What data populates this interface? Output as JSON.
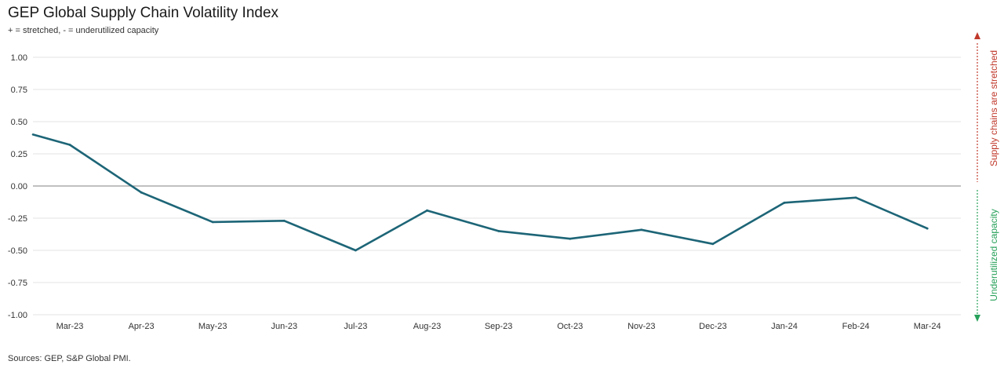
{
  "chart_data": {
    "type": "line",
    "title": "GEP Global Supply Chain Volatility Index",
    "subtitle": "+ = stretched, - = underutilized capacity",
    "xlabel": "",
    "ylabel": "",
    "ylim": [
      -1.0,
      1.0
    ],
    "yticks": [
      "1.00",
      "0.75",
      "0.50",
      "0.25",
      "0.00",
      "-0.25",
      "-0.50",
      "-0.75",
      "-1.00"
    ],
    "ytick_values": [
      1.0,
      0.75,
      0.5,
      0.25,
      0.0,
      -0.25,
      -0.5,
      -0.75,
      -1.0
    ],
    "grid": true,
    "categories": [
      "Mar-23",
      "Apr-23",
      "May-23",
      "Jun-23",
      "Jul-23",
      "Aug-23",
      "Sep-23",
      "Oct-23",
      "Nov-23",
      "Dec-23",
      "Jan-24",
      "Feb-24",
      "Mar-24"
    ],
    "series": [
      {
        "values": [
          0.32,
          -0.05,
          -0.28,
          -0.27,
          -0.5,
          -0.19,
          -0.35,
          -0.41,
          -0.34,
          -0.45,
          -0.13,
          -0.09,
          -0.33
        ],
        "start_value": 0.4,
        "color": "#1d6577"
      }
    ],
    "annotations": {
      "upper": {
        "text": "Supply chains are stretched",
        "color": "#c0392b"
      },
      "lower": {
        "text": "Underutilized capacity",
        "color": "#27a15a"
      }
    },
    "source": "Sources: GEP, S&P Global PMI."
  }
}
